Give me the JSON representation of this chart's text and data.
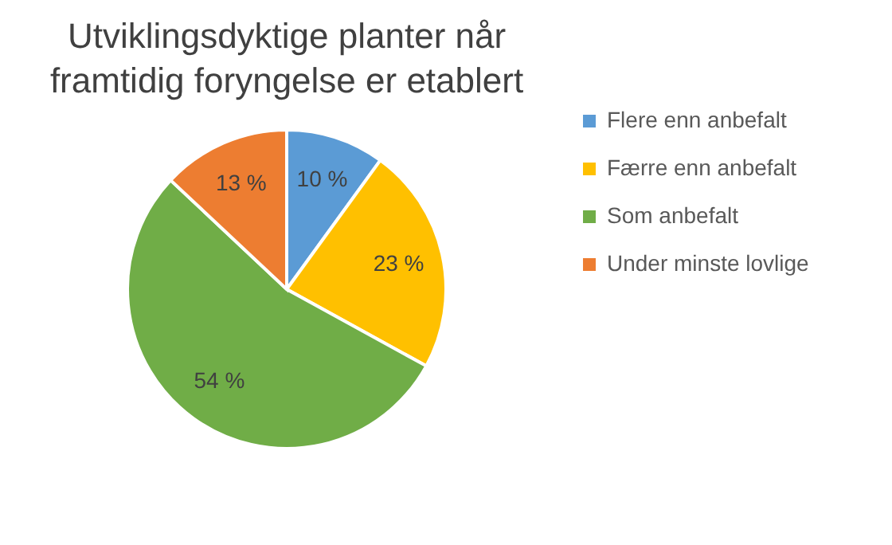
{
  "chart_data": {
    "type": "pie",
    "title": "Utviklingsdyktige planter når framtidig foryngelse er etablert",
    "categories": [
      "Flere enn anbefalt",
      "Færre enn anbefalt",
      "Som anbefalt",
      "Under minste lovlige"
    ],
    "values": [
      10,
      23,
      54,
      13
    ],
    "colors": [
      "#5b9bd5",
      "#ffc000",
      "#70ad47",
      "#ed7d31"
    ],
    "value_labels": [
      "10 %",
      "23 %",
      "54 %",
      "13 %"
    ],
    "legend": "right"
  }
}
